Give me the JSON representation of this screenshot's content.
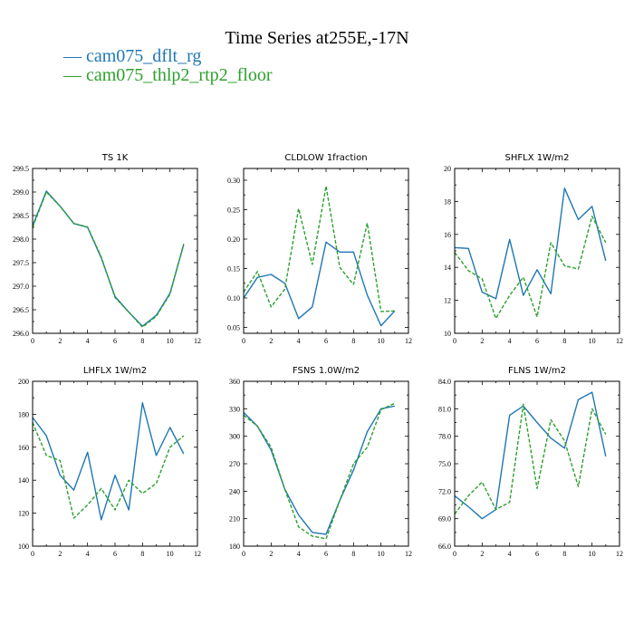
{
  "title": "Time Series at255E,-17N",
  "legend": [
    {
      "label": "— cam075_dflt_rg",
      "color": "#1f77b4"
    },
    {
      "label": "— cam075_thlp2_rtp2_floor",
      "color": "#2ca02c"
    }
  ],
  "chart_data": [
    {
      "type": "line",
      "title": "TS   1K",
      "xlim": [
        0,
        12
      ],
      "ylim": [
        296.0,
        299.5
      ],
      "xticks": [
        0,
        2,
        4,
        6,
        8,
        10,
        12
      ],
      "yticks": [
        296.0,
        296.5,
        297.0,
        297.5,
        298.0,
        298.5,
        299.0,
        299.5
      ],
      "ytick_labels": [
        "296.0",
        "296.5",
        "297.0",
        "297.5",
        "298.0",
        "298.5",
        "299.0",
        "299.5"
      ],
      "x": [
        0,
        1,
        2,
        3,
        4,
        5,
        6,
        7,
        8,
        9,
        10,
        11
      ],
      "series": [
        {
          "name": "cam075_dflt_rg",
          "color": "#1f77b4",
          "dash": "",
          "values": [
            298.28,
            299.02,
            298.7,
            298.33,
            298.25,
            297.6,
            296.78,
            296.45,
            296.15,
            296.38,
            296.85,
            297.88
          ]
        },
        {
          "name": "cam075_thlp2_rtp2_floor",
          "color": "#2ca02c",
          "dash": "4,2",
          "values": [
            298.25,
            299.0,
            298.7,
            298.33,
            298.26,
            297.62,
            296.76,
            296.45,
            296.13,
            296.36,
            296.83,
            297.9
          ]
        }
      ]
    },
    {
      "type": "line",
      "title": "CLDLOW   1fraction",
      "xlim": [
        0,
        12
      ],
      "ylim": [
        0.04,
        0.32
      ],
      "xticks": [
        0,
        2,
        4,
        6,
        8,
        10,
        12
      ],
      "yticks": [
        0.05,
        0.1,
        0.15,
        0.2,
        0.25,
        0.3
      ],
      "ytick_labels": [
        "0.05",
        "0.10",
        "0.15",
        "0.20",
        "0.25",
        "0.30"
      ],
      "x": [
        0,
        1,
        2,
        3,
        4,
        5,
        6,
        7,
        8,
        9,
        10,
        11
      ],
      "series": [
        {
          "name": "cam075_dflt_rg",
          "color": "#1f77b4",
          "dash": "",
          "values": [
            0.1,
            0.135,
            0.14,
            0.125,
            0.065,
            0.085,
            0.195,
            0.178,
            0.178,
            0.105,
            0.053,
            0.078
          ]
        },
        {
          "name": "cam075_thlp2_rtp2_floor",
          "color": "#2ca02c",
          "dash": "4,2",
          "values": [
            0.11,
            0.145,
            0.085,
            0.115,
            0.252,
            0.157,
            0.29,
            0.152,
            0.123,
            0.227,
            0.077,
            0.078
          ]
        }
      ]
    },
    {
      "type": "line",
      "title": "SHFLX   1W/m2",
      "xlim": [
        0,
        12
      ],
      "ylim": [
        10,
        20
      ],
      "xticks": [
        0,
        2,
        4,
        6,
        8,
        10,
        12
      ],
      "yticks": [
        10,
        12,
        14,
        16,
        18,
        20
      ],
      "ytick_labels": [
        "10",
        "12",
        "14",
        "16",
        "18",
        "20"
      ],
      "x": [
        0,
        1,
        2,
        3,
        4,
        5,
        6,
        7,
        8,
        9,
        10,
        11
      ],
      "series": [
        {
          "name": "cam075_dflt_rg",
          "color": "#1f77b4",
          "dash": "",
          "values": [
            15.2,
            15.15,
            12.5,
            12.1,
            15.7,
            12.3,
            13.85,
            12.4,
            18.8,
            16.9,
            17.7,
            14.4
          ]
        },
        {
          "name": "cam075_thlp2_rtp2_floor",
          "color": "#2ca02c",
          "dash": "4,2",
          "values": [
            14.9,
            13.8,
            13.3,
            10.9,
            12.3,
            13.4,
            11.0,
            15.5,
            14.1,
            13.9,
            17.1,
            15.5
          ]
        }
      ]
    },
    {
      "type": "line",
      "title": "LHFLX   1W/m2",
      "xlim": [
        0,
        12
      ],
      "ylim": [
        100,
        200
      ],
      "xticks": [
        0,
        2,
        4,
        6,
        8,
        10,
        12
      ],
      "yticks": [
        100,
        120,
        140,
        160,
        180,
        200
      ],
      "ytick_labels": [
        "100",
        "120",
        "140",
        "160",
        "180",
        "200"
      ],
      "x": [
        0,
        1,
        2,
        3,
        4,
        5,
        6,
        7,
        8,
        9,
        10,
        11
      ],
      "series": [
        {
          "name": "cam075_dflt_rg",
          "color": "#1f77b4",
          "dash": "",
          "values": [
            178,
            167,
            143,
            134,
            157,
            116,
            143,
            122,
            187,
            155,
            172,
            156
          ]
        },
        {
          "name": "cam075_thlp2_rtp2_floor",
          "color": "#2ca02c",
          "dash": "4,2",
          "values": [
            175,
            155,
            152,
            117,
            125,
            135,
            122,
            140,
            132,
            138,
            160,
            167
          ]
        }
      ]
    },
    {
      "type": "line",
      "title": "FSNS   1.0W/m2",
      "xlim": [
        0,
        12
      ],
      "ylim": [
        180,
        360
      ],
      "xticks": [
        0,
        2,
        4,
        6,
        8,
        10,
        12
      ],
      "yticks": [
        180,
        210,
        240,
        270,
        300,
        330,
        360
      ],
      "ytick_labels": [
        "180",
        "210",
        "240",
        "270",
        "300",
        "330",
        "360"
      ],
      "x": [
        0,
        1,
        2,
        3,
        4,
        5,
        6,
        7,
        8,
        9,
        10,
        11
      ],
      "series": [
        {
          "name": "cam075_dflt_rg",
          "color": "#1f77b4",
          "dash": "",
          "values": [
            326,
            311,
            285,
            242,
            214,
            195,
            193,
            230,
            263,
            305,
            330,
            333
          ]
        },
        {
          "name": "cam075_thlp2_rtp2_floor",
          "color": "#2ca02c",
          "dash": "4,2",
          "values": [
            323,
            311,
            288,
            242,
            201,
            191,
            188,
            230,
            270,
            288,
            329,
            336
          ]
        }
      ]
    },
    {
      "type": "line",
      "title": "FLNS   1W/m2",
      "xlim": [
        0,
        12
      ],
      "ylim": [
        66,
        84
      ],
      "xticks": [
        0,
        2,
        4,
        6,
        8,
        10,
        12
      ],
      "yticks": [
        66,
        69,
        72,
        75,
        78,
        81,
        84
      ],
      "ytick_labels": [
        "66.0",
        "69.0",
        "72.0",
        "75.0",
        "78.0",
        "81.0",
        "84.0"
      ],
      "x": [
        0,
        1,
        2,
        3,
        4,
        5,
        6,
        7,
        8,
        9,
        10,
        11
      ],
      "series": [
        {
          "name": "cam075_dflt_rg",
          "color": "#1f77b4",
          "dash": "",
          "values": [
            71.5,
            70.3,
            69.0,
            70.0,
            80.3,
            81.3,
            79.5,
            77.8,
            76.7,
            82.0,
            82.8,
            75.8
          ]
        },
        {
          "name": "cam075_thlp2_rtp2_floor",
          "color": "#2ca02c",
          "dash": "4,2",
          "values": [
            69.5,
            71.5,
            73.0,
            70.0,
            70.8,
            81.5,
            72.3,
            79.8,
            77.5,
            72.5,
            81.0,
            78.2
          ]
        }
      ]
    }
  ]
}
